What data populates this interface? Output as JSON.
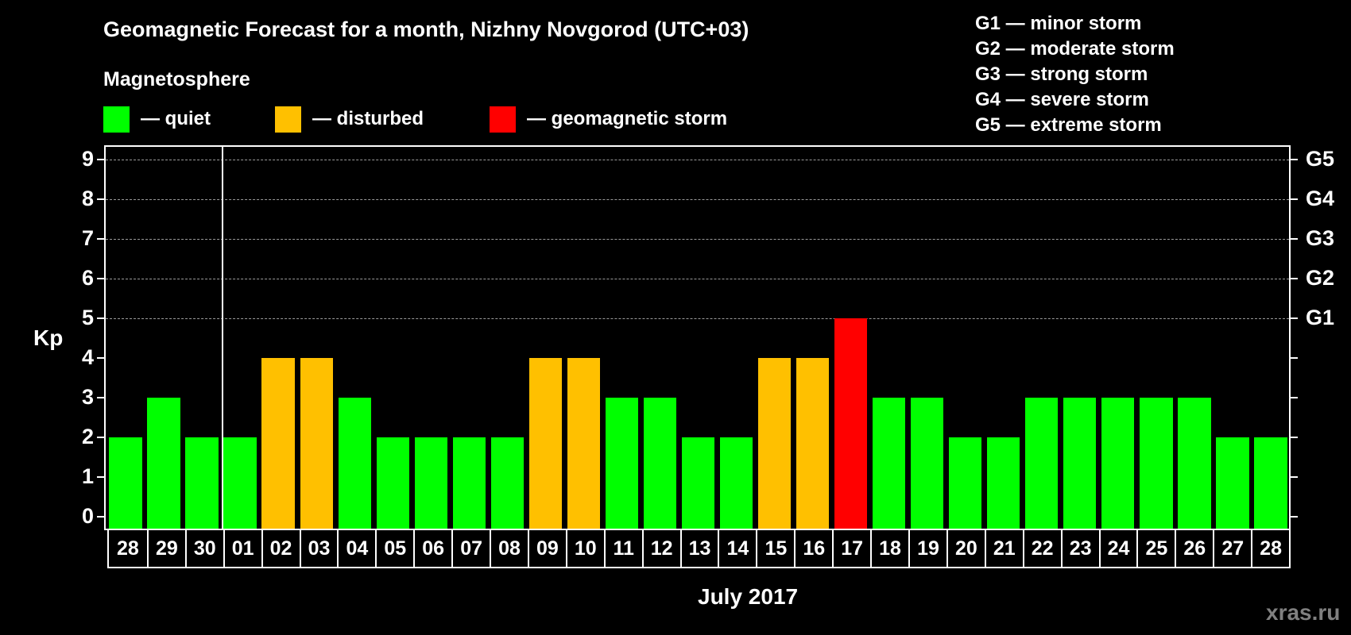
{
  "title": "Geomagnetic Forecast for a month, Nizhny Novgorod (UTC+03)",
  "subtitle": "Magnetosphere",
  "legend": [
    {
      "label": "— quiet",
      "color": "#00ff00"
    },
    {
      "label": "— disturbed",
      "color": "#ffc000"
    },
    {
      "label": "— geomagnetic storm",
      "color": "#ff0000"
    }
  ],
  "storm_scale": [
    "G1 — minor storm",
    "G2 — moderate storm",
    "G3 — strong storm",
    "G4 — severe storm",
    "G5 — extreme storm"
  ],
  "y_axis_label": "Kp",
  "month_label": "July 2017",
  "watermark": "xras.ru",
  "chart_data": {
    "type": "bar",
    "title": "Geomagnetic Forecast for a month, Nizhny Novgorod (UTC+03)",
    "xlabel": "July 2017",
    "ylabel": "Kp",
    "ylim": [
      0,
      9
    ],
    "yticks": [
      0,
      1,
      2,
      3,
      4,
      5,
      6,
      7,
      8,
      9
    ],
    "secondary_yticks": {
      "5": "G1",
      "6": "G2",
      "7": "G3",
      "8": "G4",
      "9": "G5"
    },
    "grid": "dashed horizontal at Kp 5-9",
    "categories": [
      "28",
      "29",
      "30",
      "01",
      "02",
      "03",
      "04",
      "05",
      "06",
      "07",
      "08",
      "09",
      "10",
      "11",
      "12",
      "13",
      "14",
      "15",
      "16",
      "17",
      "18",
      "19",
      "20",
      "21",
      "22",
      "23",
      "24",
      "25",
      "26",
      "27",
      "28"
    ],
    "values": [
      2,
      3,
      2,
      2,
      4,
      4,
      3,
      2,
      2,
      2,
      2,
      4,
      4,
      3,
      3,
      2,
      2,
      4,
      4,
      5,
      3,
      3,
      2,
      2,
      3,
      3,
      3,
      3,
      3,
      2,
      2
    ],
    "status": [
      "quiet",
      "quiet",
      "quiet",
      "quiet",
      "disturbed",
      "disturbed",
      "quiet",
      "quiet",
      "quiet",
      "quiet",
      "quiet",
      "disturbed",
      "disturbed",
      "quiet",
      "quiet",
      "quiet",
      "quiet",
      "disturbed",
      "disturbed",
      "storm",
      "quiet",
      "quiet",
      "quiet",
      "quiet",
      "quiet",
      "quiet",
      "quiet",
      "quiet",
      "quiet",
      "quiet",
      "quiet"
    ],
    "colors": {
      "quiet": "#00ff00",
      "disturbed": "#ffc000",
      "storm": "#ff0000"
    },
    "month_separator_after_index": 2
  }
}
